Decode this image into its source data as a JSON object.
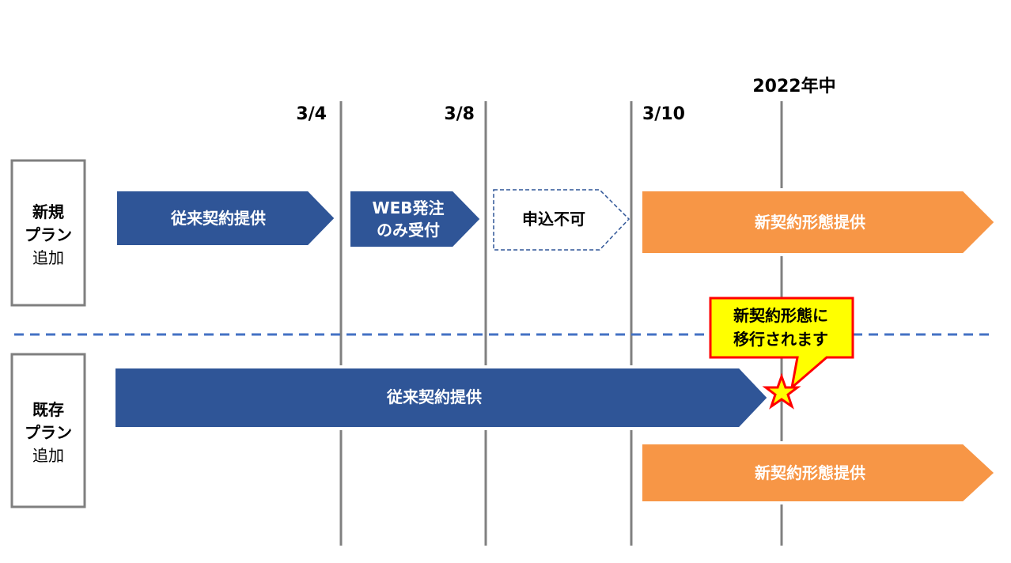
{
  "timeline": {
    "dates": [
      "3/4",
      "3/8",
      "3/10",
      "2022年中"
    ]
  },
  "rows": {
    "new": {
      "label_line1": "新規",
      "label_line2": "プラン",
      "label_line3": "追加",
      "phases": {
        "legacy": "従来契約提供",
        "web_line1": "WEB発注",
        "web_line2": "のみ受付",
        "unavailable": "申込不可",
        "new_contract": "新契約形態提供"
      }
    },
    "existing": {
      "label_line1": "既存",
      "label_line2": "プラン",
      "label_line3": "追加",
      "phases": {
        "legacy": "従来契約提供",
        "new_contract": "新契約形態提供"
      }
    }
  },
  "callout": {
    "line1": "新契約形態に",
    "line2": "移行されます",
    "icon": "star-icon"
  },
  "colors": {
    "navy": "#2f5597",
    "orange": "#f79646",
    "callout_fill": "#ffff00",
    "callout_border": "#ff0000",
    "divider": "#4472c4",
    "gridline": "#808080"
  }
}
